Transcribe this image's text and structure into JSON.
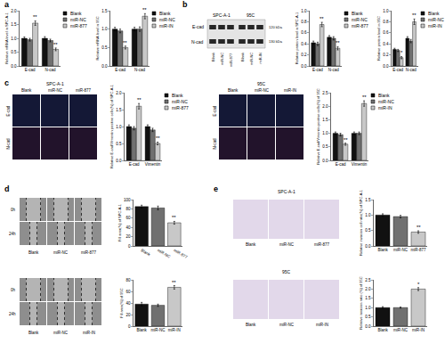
{
  "panel_labels": [
    "a",
    "b",
    "c",
    "d",
    "e"
  ],
  "blot": {
    "groups": [
      {
        "name": "SPC-A-1",
        "lanes": [
          "Blank",
          "miR-NC",
          "miR-877"
        ]
      },
      {
        "name": "95C",
        "lanes": [
          "Blank",
          "miR-NC",
          "miR-IN"
        ]
      }
    ],
    "rows": [
      {
        "protein": "E-cad",
        "size": "120 kDa"
      },
      {
        "protein": "N-cad",
        "size": "130 kDa"
      }
    ]
  },
  "fluorescence_images": [
    {
      "cell_line": "SPC-A-1",
      "columns": [
        "Blank",
        "miR-NC",
        "miR-877"
      ],
      "rows": [
        "E-cad",
        "N-cad"
      ]
    },
    {
      "cell_line": "95C",
      "columns": [
        "Blank",
        "miR-NC",
        "miR-IN"
      ],
      "rows": [
        "E-cad",
        "N-cad"
      ]
    }
  ],
  "wound_images": [
    {
      "columns": [
        "Blank",
        "miR-NC",
        "miR-877"
      ],
      "rows": [
        "0h",
        "24h"
      ]
    },
    {
      "columns": [
        "Blank",
        "miR-NC",
        "miR-IN"
      ],
      "rows": [
        "0h",
        "24h"
      ]
    }
  ],
  "transwell_images": [
    {
      "cell_line": "SPC-A-1",
      "columns": [
        "Blank",
        "miR-NC",
        "miR-877"
      ]
    },
    {
      "cell_line": "95C",
      "columns": [
        "Blank",
        "miR-NC",
        "miR-IN"
      ]
    }
  ],
  "chart_data": [
    {
      "type": "bar",
      "y_label": "Relative mRNA level in SPC-A-1",
      "categories": [
        "E-cad",
        "N-cad"
      ],
      "series": [
        {
          "name": "Blank",
          "color": "#111111",
          "values": [
            1.0,
            1.0
          ],
          "errors": [
            0.05,
            0.06
          ]
        },
        {
          "name": "miR-NC",
          "color": "#707070",
          "values": [
            0.95,
            0.92
          ],
          "errors": [
            0.05,
            0.05
          ]
        },
        {
          "name": "miR-877",
          "color": "#c8c8c8",
          "values": [
            1.55,
            0.6
          ],
          "errors": [
            0.08,
            0.05
          ],
          "significance": [
            "**",
            "**"
          ]
        }
      ],
      "ylim": [
        0,
        2
      ],
      "yticks": [
        {
          "value": 0,
          "label": "0.0"
        },
        0.5,
        {
          "value": 1,
          "label": "1.0"
        },
        1.5,
        {
          "value": 2,
          "label": "2.0"
        }
      ],
      "legend": "right"
    },
    {
      "type": "bar",
      "y_label": "Relative mRNA level in 95C",
      "categories": [
        "E-cad",
        "N-cad"
      ],
      "series": [
        {
          "name": "Blank",
          "color": "#111111",
          "values": [
            1.0,
            1.0
          ],
          "errors": [
            0.05,
            0.05
          ]
        },
        {
          "name": "miR-NC",
          "color": "#707070",
          "values": [
            0.95,
            1.0
          ],
          "errors": [
            0.05,
            0.06
          ]
        },
        {
          "name": "miR-IN",
          "color": "#c8c8c8",
          "values": [
            0.5,
            1.35
          ],
          "errors": [
            0.04,
            0.07
          ],
          "significance": [
            "**",
            "**"
          ]
        }
      ],
      "ylim": [
        0,
        1.5
      ],
      "yticks": [
        {
          "value": 0,
          "label": "0.0"
        },
        0.5,
        {
          "value": 1,
          "label": "1.0"
        },
        1.5
      ],
      "legend": "right"
    },
    {
      "type": "bar",
      "y_label": "Relative protein level in SPC-A-1",
      "categories": [
        "E-cad",
        "N-cad"
      ],
      "series": [
        {
          "name": "Blank",
          "color": "#111111",
          "values": [
            0.42,
            0.52
          ],
          "errors": [
            0.03,
            0.03
          ]
        },
        {
          "name": "miR-NC",
          "color": "#707070",
          "values": [
            0.4,
            0.5
          ],
          "errors": [
            0.03,
            0.03
          ]
        },
        {
          "name": "miR-877",
          "color": "#c8c8c8",
          "values": [
            0.75,
            0.32
          ],
          "errors": [
            0.04,
            0.03
          ],
          "significance": [
            "**",
            "**"
          ]
        }
      ],
      "ylim": [
        0,
        1
      ],
      "yticks": [
        {
          "value": 0,
          "label": "0.0"
        },
        0.2,
        0.4,
        0.6,
        0.8,
        {
          "value": 1,
          "label": "1.0"
        }
      ],
      "legend": "right"
    },
    {
      "type": "bar",
      "y_label": "Relative protein level in 95C",
      "categories": [
        "E-cad",
        "N-cad"
      ],
      "series": [
        {
          "name": "Blank",
          "color": "#111111",
          "values": [
            0.3,
            0.5
          ],
          "errors": [
            0.02,
            0.03
          ]
        },
        {
          "name": "miR-NC",
          "color": "#707070",
          "values": [
            0.28,
            0.45
          ],
          "errors": [
            0.02,
            0.03
          ]
        },
        {
          "name": "miR-IN",
          "color": "#c8c8c8",
          "values": [
            0.15,
            0.8
          ],
          "errors": [
            0.02,
            0.05
          ],
          "significance": [
            "*",
            "**"
          ]
        }
      ],
      "ylim": [
        0,
        1
      ],
      "yticks": [
        {
          "value": 0,
          "label": "0.0"
        },
        0.2,
        0.4,
        0.6,
        0.8,
        {
          "value": 1,
          "label": "1.0"
        }
      ],
      "legend": "right"
    },
    {
      "type": "bar",
      "y_label": "Relative E-cad/Vimentin positive cells(%) of SPC-A-1",
      "categories": [
        "E-cad",
        "Vimentin"
      ],
      "series": [
        {
          "name": "Blank",
          "color": "#111111",
          "values": [
            1.0,
            1.0
          ],
          "errors": [
            0.05,
            0.05
          ]
        },
        {
          "name": "miR-NC",
          "color": "#707070",
          "values": [
            0.95,
            0.9
          ],
          "errors": [
            0.05,
            0.05
          ]
        },
        {
          "name": "miR-877",
          "color": "#c8c8c8",
          "values": [
            1.6,
            0.5
          ],
          "errors": [
            0.08,
            0.04
          ],
          "significance": [
            "**",
            "**"
          ]
        }
      ],
      "ylim": [
        0,
        2
      ],
      "yticks": [
        {
          "value": 0,
          "label": "0.0"
        },
        0.5,
        {
          "value": 1,
          "label": "1.0"
        },
        1.5,
        {
          "value": 2,
          "label": "2.0"
        }
      ],
      "legend": "right"
    },
    {
      "type": "bar",
      "y_label": "Relative E-cad/Vimentin positive cells(%) of 95C",
      "categories": [
        "E-cad",
        "Vimentin"
      ],
      "series": [
        {
          "name": "Blank",
          "color": "#111111",
          "values": [
            1.0,
            1.0
          ],
          "errors": [
            0.05,
            0.05
          ]
        },
        {
          "name": "miR-NC",
          "color": "#707070",
          "values": [
            0.95,
            1.0
          ],
          "errors": [
            0.05,
            0.05
          ]
        },
        {
          "name": "miR-IN",
          "color": "#c8c8c8",
          "values": [
            0.6,
            2.1
          ],
          "errors": [
            0.04,
            0.1
          ],
          "significance": [
            "**",
            "**"
          ]
        }
      ],
      "ylim": [
        0,
        2.5
      ],
      "yticks": [
        {
          "value": 0,
          "label": "0.0"
        },
        0.5,
        {
          "value": 1,
          "label": "1.0"
        },
        1.5,
        {
          "value": 2,
          "label": "2.0"
        },
        2.5
      ],
      "legend": "right"
    },
    {
      "type": "bar",
      "y_label": "Fill area(%) of SPC-A-1",
      "categories": [
        "Blank",
        "miR-NC",
        "miR-877"
      ],
      "values": [
        85,
        82,
        50
      ],
      "errors": [
        3,
        4,
        3
      ],
      "colors": [
        "#111111",
        "#707070",
        "#c8c8c8"
      ],
      "significance": [
        null,
        null,
        "**"
      ],
      "ylim": [
        0,
        100
      ],
      "yticks": [
        0,
        20,
        40,
        60,
        80,
        100
      ]
    },
    {
      "type": "bar",
      "y_label": "Fill area(%) of 95C",
      "categories": [
        "Blank",
        "miR-NC",
        "miR-IN"
      ],
      "values": [
        38,
        36,
        67
      ],
      "errors": [
        3,
        2,
        3
      ],
      "colors": [
        "#111111",
        "#707070",
        "#c8c8c8"
      ],
      "significance": [
        null,
        null,
        "**"
      ],
      "ylim": [
        0,
        80
      ],
      "yticks": [
        0,
        20,
        40,
        60,
        80
      ]
    },
    {
      "type": "bar",
      "y_label": "Relative invasion cell ratio(%) of SPC-A-1",
      "categories": [
        "Blank",
        "miR-NC",
        "miR-877"
      ],
      "values": [
        1.0,
        0.95,
        0.45
      ],
      "errors": [
        0.04,
        0.04,
        0.04
      ],
      "colors": [
        "#111111",
        "#707070",
        "#c8c8c8"
      ],
      "significance": [
        null,
        null,
        "**"
      ],
      "ylim": [
        0,
        1.5
      ],
      "yticks": [
        {
          "value": 0,
          "label": "0.0"
        },
        0.5,
        {
          "value": 1,
          "label": "1.0"
        },
        1.5
      ]
    },
    {
      "type": "bar",
      "y_label": "Relative invasion ratio (%) of 95C",
      "categories": [
        "Blank",
        "miR-NC",
        "miR-IN"
      ],
      "values": [
        1.0,
        1.0,
        2.0
      ],
      "errors": [
        0.05,
        0.03,
        0.08
      ],
      "colors": [
        "#111111",
        "#707070",
        "#c8c8c8"
      ],
      "significance": [
        null,
        null,
        "*"
      ],
      "ylim": [
        0,
        2.5
      ],
      "yticks": [
        {
          "value": 0,
          "label": "0.0"
        },
        0.5,
        {
          "value": 1,
          "label": "1.0"
        },
        1.5,
        {
          "value": 2,
          "label": "2.0"
        },
        2.5
      ]
    }
  ]
}
